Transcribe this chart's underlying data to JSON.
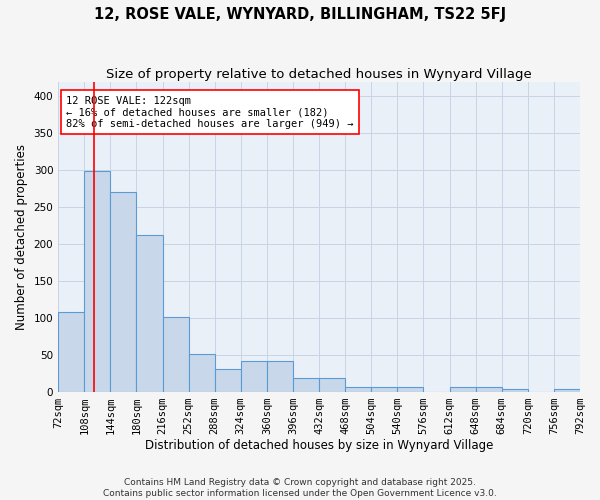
{
  "title_line1": "12, ROSE VALE, WYNYARD, BILLINGHAM, TS22 5FJ",
  "title_line2": "Size of property relative to detached houses in Wynyard Village",
  "xlabel": "Distribution of detached houses by size in Wynyard Village",
  "ylabel": "Number of detached properties",
  "bins": [
    72,
    108,
    144,
    180,
    216,
    252,
    288,
    324,
    360,
    396,
    432,
    468,
    504,
    540,
    576,
    612,
    648,
    684,
    720,
    756,
    792
  ],
  "bar_heights": [
    108,
    299,
    270,
    212,
    101,
    51,
    31,
    42,
    41,
    18,
    18,
    6,
    6,
    6,
    0,
    6,
    6,
    4,
    0,
    4
  ],
  "bar_color": "#c8d8ea",
  "bar_edge_color": "#5b9bd5",
  "bar_edge_width": 0.8,
  "grid_color": "#c8d4e4",
  "background_color": "#eaf0f8",
  "fig_background_color": "#f5f5f5",
  "red_line_x": 122,
  "annotation_text": "12 ROSE VALE: 122sqm\n← 16% of detached houses are smaller (182)\n82% of semi-detached houses are larger (949) →",
  "ylim": [
    0,
    420
  ],
  "yticks": [
    0,
    50,
    100,
    150,
    200,
    250,
    300,
    350,
    400
  ],
  "footer_line1": "Contains HM Land Registry data © Crown copyright and database right 2025.",
  "footer_line2": "Contains public sector information licensed under the Open Government Licence v3.0.",
  "title_fontsize": 10.5,
  "subtitle_fontsize": 9.5,
  "axis_label_fontsize": 8.5,
  "tick_fontsize": 7.5,
  "annotation_fontsize": 7.5,
  "footer_fontsize": 6.5
}
